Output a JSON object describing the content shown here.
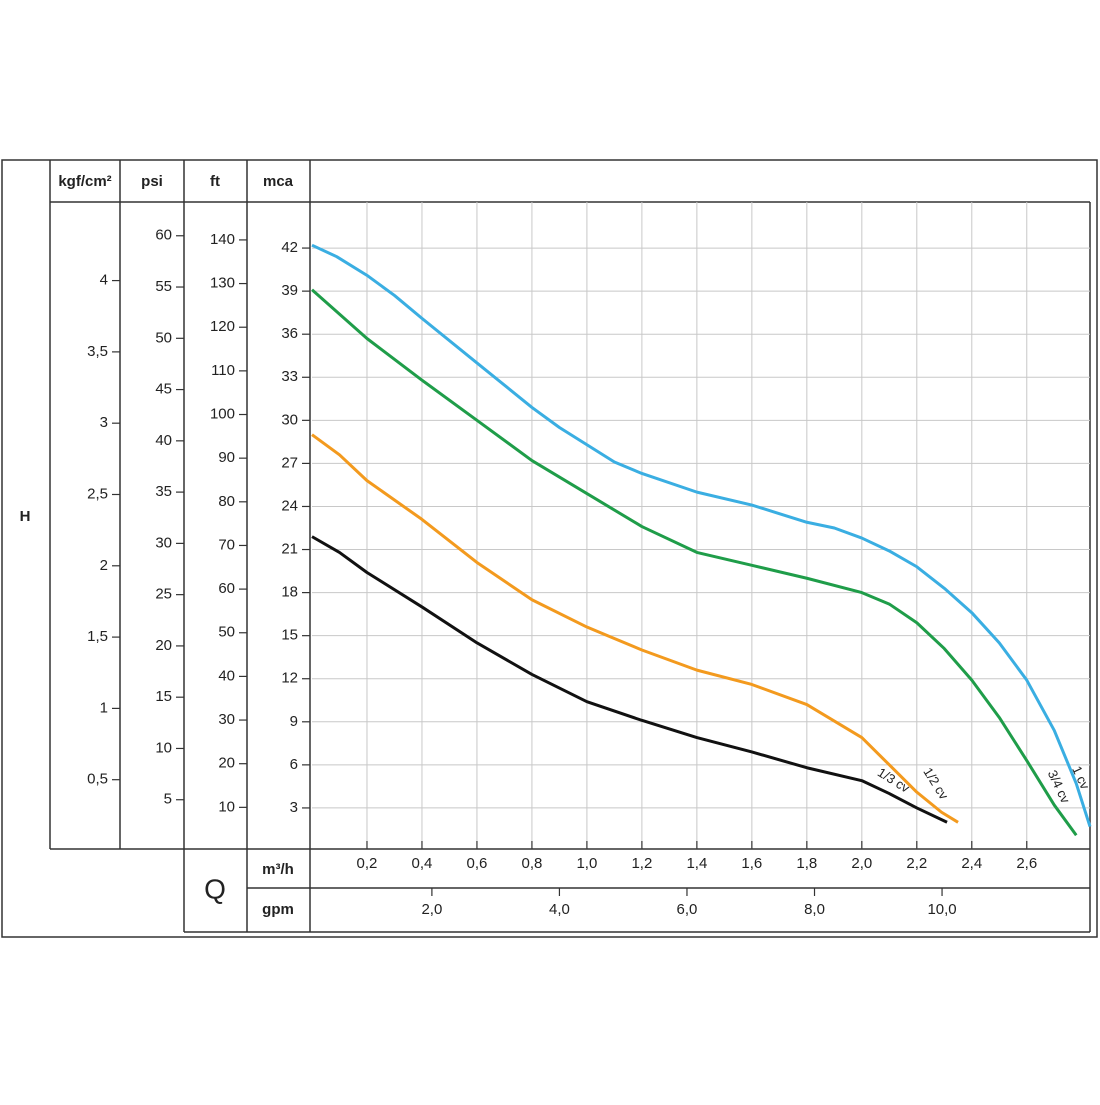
{
  "chart_data": {
    "type": "line",
    "y_axis_title": "H",
    "x_axis_title": "Q",
    "grid": true,
    "y_axes": [
      {
        "unit": "kgf/cm²",
        "ylim": [
          0,
          4.53
        ],
        "yticks": [
          {
            "value": 0.5,
            "label": "0,5"
          },
          1,
          {
            "value": 1.5,
            "label": "1,5"
          },
          2,
          {
            "value": 2.5,
            "label": "2,5"
          },
          3,
          {
            "value": 3.5,
            "label": "3,5"
          },
          4
        ]
      },
      {
        "unit": "psi",
        "ylim": [
          0,
          63
        ],
        "yticks": [
          5,
          10,
          15,
          20,
          25,
          30,
          35,
          40,
          45,
          50,
          55,
          60
        ]
      },
      {
        "unit": "ft",
        "ylim": [
          0,
          148
        ],
        "yticks": [
          10,
          20,
          30,
          40,
          50,
          60,
          70,
          80,
          90,
          100,
          110,
          120,
          130,
          140
        ]
      },
      {
        "unit": "mca",
        "ylim": [
          0,
          45
        ],
        "yticks": [
          3,
          6,
          9,
          12,
          15,
          18,
          21,
          24,
          27,
          30,
          33,
          36,
          39,
          42
        ]
      }
    ],
    "x_axes": [
      {
        "unit": "m³/h",
        "xlim": [
          0,
          2.83
        ],
        "xticks": [
          {
            "value": 0.2,
            "label": "0,2"
          },
          {
            "value": 0.4,
            "label": "0,4"
          },
          {
            "value": 0.6,
            "label": "0,6"
          },
          {
            "value": 0.8,
            "label": "0,8"
          },
          {
            "value": 1.0,
            "label": "1,0"
          },
          {
            "value": 1.2,
            "label": "1,2"
          },
          {
            "value": 1.4,
            "label": "1,4"
          },
          {
            "value": 1.6,
            "label": "1,6"
          },
          {
            "value": 1.8,
            "label": "1,8"
          },
          {
            "value": 2.0,
            "label": "2,0"
          },
          {
            "value": 2.2,
            "label": "2,2"
          },
          {
            "value": 2.4,
            "label": "2,4"
          },
          {
            "value": 2.6,
            "label": "2,6"
          }
        ]
      },
      {
        "unit": "gpm",
        "xlim": [
          0.12,
          12.32
        ],
        "xticks": [
          {
            "value": 2,
            "label": "2,0"
          },
          {
            "value": 4,
            "label": "4,0"
          },
          {
            "value": 6,
            "label": "6,0"
          },
          {
            "value": 8,
            "label": "8,0"
          },
          {
            "value": 10,
            "label": "10,0"
          }
        ]
      }
    ],
    "series": [
      {
        "name": "1 cv",
        "color": "#3aaee2",
        "x": [
          0,
          0.09,
          0.2,
          0.3,
          0.4,
          0.6,
          0.8,
          0.9,
          1.1,
          1.2,
          1.4,
          1.6,
          1.7,
          1.8,
          1.9,
          2.0,
          2.1,
          2.2,
          2.3,
          2.4,
          2.5,
          2.6,
          2.7,
          2.78,
          2.83
        ],
        "values": [
          42.2,
          41.4,
          40.1,
          38.7,
          37.1,
          34.0,
          30.9,
          29.5,
          27.1,
          26.3,
          25.0,
          24.1,
          23.5,
          22.9,
          22.5,
          21.8,
          20.9,
          19.8,
          18.3,
          16.6,
          14.5,
          11.9,
          8.4,
          4.7,
          1.7
        ]
      },
      {
        "name": "3/4 cv",
        "color": "#1f9d49",
        "x": [
          0,
          0.2,
          0.4,
          0.6,
          0.8,
          1.0,
          1.2,
          1.4,
          1.6,
          1.8,
          2.0,
          2.1,
          2.2,
          2.3,
          2.4,
          2.5,
          2.6,
          2.7,
          2.78
        ],
        "values": [
          39.1,
          35.7,
          32.8,
          30.0,
          27.2,
          24.9,
          22.6,
          20.8,
          19.9,
          19.0,
          18.0,
          17.2,
          15.9,
          14.1,
          11.9,
          9.3,
          6.3,
          3.2,
          1.1
        ]
      },
      {
        "name": "1/2 cv",
        "color": "#f39a1e",
        "x": [
          0,
          0.1,
          0.2,
          0.4,
          0.6,
          0.8,
          1.0,
          1.2,
          1.4,
          1.6,
          1.8,
          2.0,
          2.1,
          2.2,
          2.29,
          2.35
        ],
        "values": [
          29.0,
          27.6,
          25.8,
          23.1,
          20.1,
          17.5,
          15.6,
          14.0,
          12.6,
          11.6,
          10.2,
          7.9,
          6.0,
          4.1,
          2.7,
          2.0
        ]
      },
      {
        "name": "1/3 cv",
        "color": "#111111",
        "x": [
          0,
          0.1,
          0.2,
          0.4,
          0.6,
          0.8,
          1.0,
          1.2,
          1.4,
          1.6,
          1.8,
          2.0,
          2.1,
          2.2,
          2.31
        ],
        "values": [
          21.9,
          20.8,
          19.4,
          17.0,
          14.5,
          12.3,
          10.4,
          9.1,
          7.9,
          6.9,
          5.8,
          4.9,
          4.0,
          3.0,
          2.0
        ]
      }
    ]
  }
}
